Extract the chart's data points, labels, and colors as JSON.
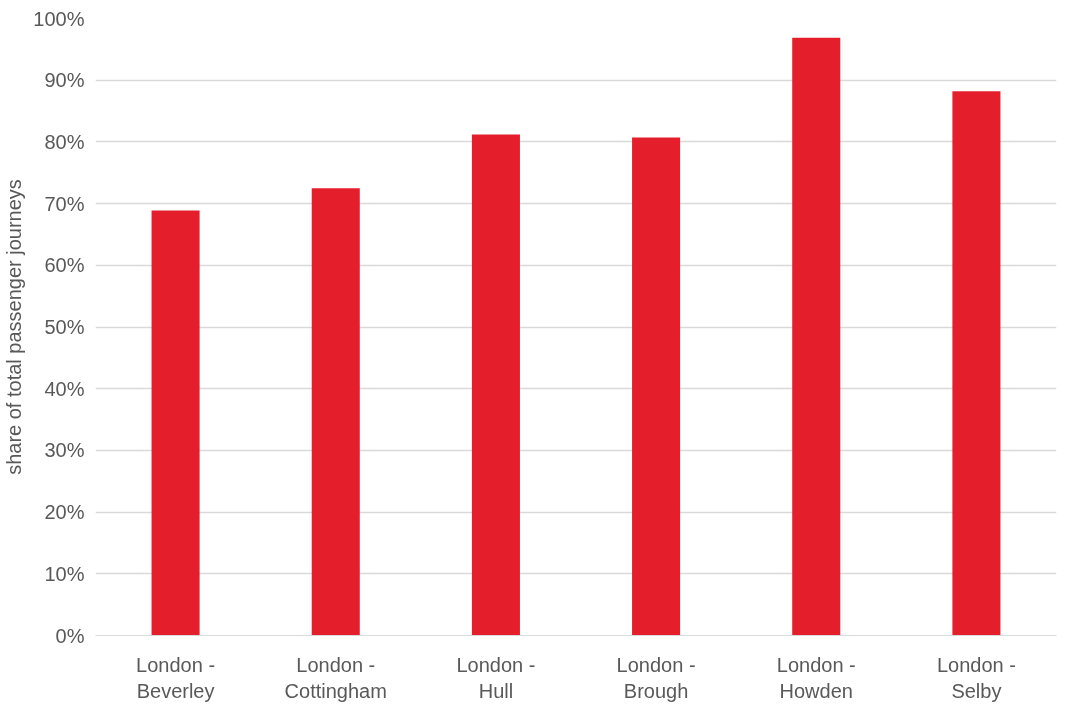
{
  "chart_data": {
    "type": "bar",
    "ylabel": "share of total passenger journeys",
    "categories": [
      "London -\nBeverley",
      "London -\nCottingham",
      "London -\nHull",
      "London -\nBrough",
      "London -\nHowden",
      "London -\nSelby"
    ],
    "values": [
      68.9,
      72.5,
      81.2,
      80.7,
      96.9,
      88.2
    ],
    "color": "#e41e2b",
    "ylim": [
      0,
      100
    ],
    "yticks": [
      {
        "value": 0,
        "label": "0%"
      },
      {
        "value": 10,
        "label": "10%"
      },
      {
        "value": 20,
        "label": "20%"
      },
      {
        "value": 30,
        "label": "30%"
      },
      {
        "value": 40,
        "label": "40%"
      },
      {
        "value": 50,
        "label": "50%"
      },
      {
        "value": 60,
        "label": "60%"
      },
      {
        "value": 70,
        "label": "70%"
      },
      {
        "value": 80,
        "label": "80%"
      },
      {
        "value": 90,
        "label": "90%"
      },
      {
        "value": 100,
        "label": "100%"
      }
    ],
    "grid": "y"
  }
}
